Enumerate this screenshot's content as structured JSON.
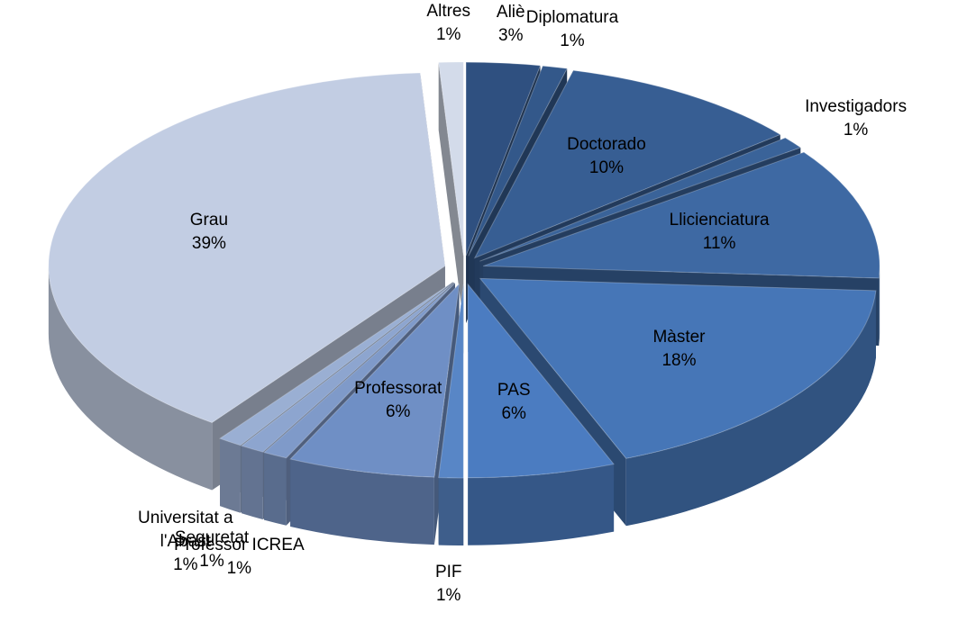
{
  "chart_data": {
    "type": "pie",
    "categories": [
      "Aliè",
      "Diplomatura",
      "Doctorado",
      "Investigadors",
      "Llicienciatura",
      "Màster",
      "PAS",
      "PIF",
      "Professorat",
      "Professor ICREA",
      "Seguretat",
      "Universitat a l'Abast",
      "Grau",
      "Altres"
    ],
    "values": [
      3,
      1,
      10,
      1,
      11,
      18,
      6,
      1,
      6,
      1,
      1,
      1,
      39,
      1
    ],
    "value_labels": [
      "3%",
      "1%",
      "10%",
      "1%",
      "11%",
      "18%",
      "6%",
      "1%",
      "6%",
      "1%",
      "1%",
      "1%",
      "39%",
      "1%"
    ],
    "colors": [
      "#2f5080",
      "#33588a",
      "#375e93",
      "#3a6399",
      "#3e69a3",
      "#4676b7",
      "#4b7cc1",
      "#5886c6",
      "#6f8fc5",
      "#7f9ac9",
      "#8da5cf",
      "#9aafd3",
      "#c2cde3",
      "#d3dbea"
    ]
  }
}
